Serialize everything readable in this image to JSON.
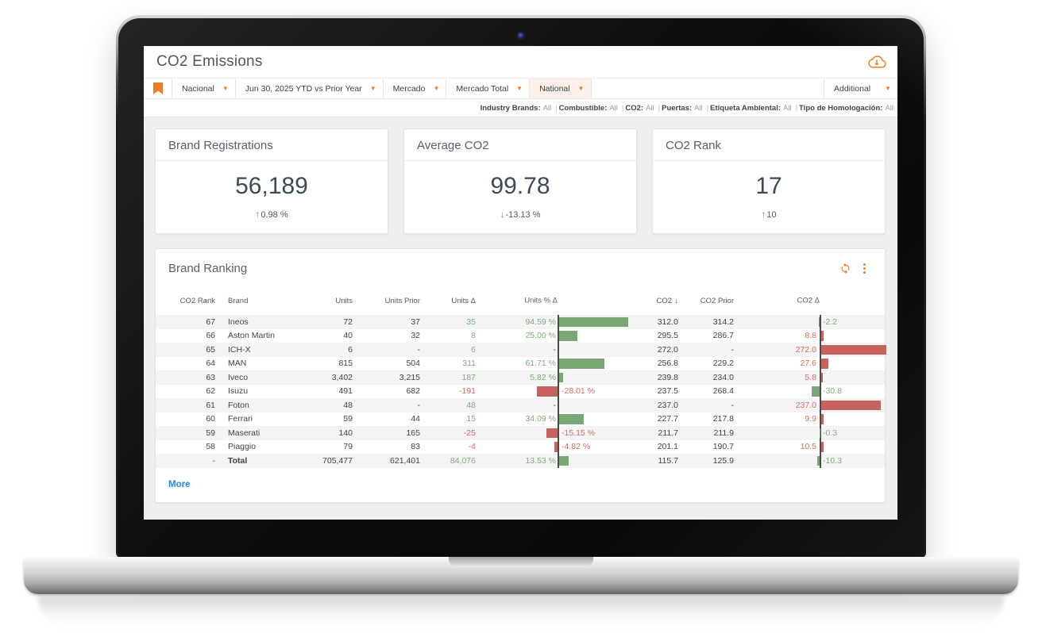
{
  "app": {
    "title": "CO2 Emissions",
    "accent_color": "#ef7d27"
  },
  "filter_bar": {
    "items": [
      {
        "label": "Nacional",
        "highlighted": false
      },
      {
        "label": "Jun 30, 2025 YTD vs Prior Year",
        "highlighted": false
      },
      {
        "label": "Mercado",
        "highlighted": false
      },
      {
        "label": "Mercado Total",
        "highlighted": false
      },
      {
        "label": "National",
        "highlighted": true
      }
    ],
    "additional_label": "Additional"
  },
  "applied_filters": [
    {
      "label": "Industry Brands:",
      "value": "All"
    },
    {
      "label": "Combustible:",
      "value": "All"
    },
    {
      "label": "CO2:",
      "value": "All"
    },
    {
      "label": "Puertas:",
      "value": "All"
    },
    {
      "label": "Etiqueta Ambiental:",
      "value": "All"
    },
    {
      "label": "Tipo de Homologación:",
      "value": "All"
    }
  ],
  "kpi_cards": [
    {
      "title": "Brand Registrations",
      "value": "56,189",
      "delta": "0.98 %",
      "direction": "up",
      "delta_color": "green"
    },
    {
      "title": "Average CO2",
      "value": "99.78",
      "delta": "-13.13 %",
      "direction": "down",
      "delta_color": "green"
    },
    {
      "title": "CO2 Rank",
      "value": "17",
      "delta": "10",
      "direction": "up",
      "delta_color": "red"
    }
  ],
  "ranking": {
    "title": "Brand Ranking",
    "more_label": "More",
    "columns": [
      "CO2 Rank",
      "Brand",
      "Units",
      "Units Prior",
      "Units Δ",
      "Units % Δ",
      "CO2",
      "CO2 Prior",
      "CO2 Δ"
    ],
    "sorted_column_index": 6,
    "rows": [
      {
        "rank": "67",
        "brand": "Ineos",
        "units": "72",
        "units_prior": "37",
        "units_delta": "35",
        "units_pct": "94.59 %",
        "units_pct_val": 94.59,
        "co2": "312.0",
        "co2_prior": "314.2",
        "co2_delta": "-2.2",
        "co2_delta_val": -2.2
      },
      {
        "rank": "66",
        "brand": "Aston Martin",
        "units": "40",
        "units_prior": "32",
        "units_delta": "8",
        "units_pct": "25.00 %",
        "units_pct_val": 25.0,
        "co2": "295.5",
        "co2_prior": "286.7",
        "co2_delta": "8.8",
        "co2_delta_val": 8.8
      },
      {
        "rank": "65",
        "brand": "ICH-X",
        "units": "6",
        "units_prior": "-",
        "units_delta": "6",
        "units_pct": "-",
        "units_pct_val": null,
        "co2": "272.0",
        "co2_prior": "-",
        "co2_delta": "272.0",
        "co2_delta_val": 272.0
      },
      {
        "rank": "64",
        "brand": "MAN",
        "units": "815",
        "units_prior": "504",
        "units_delta": "311",
        "units_pct": "61.71 %",
        "units_pct_val": 61.71,
        "co2": "256.8",
        "co2_prior": "229.2",
        "co2_delta": "27.6",
        "co2_delta_val": 27.6
      },
      {
        "rank": "63",
        "brand": "Iveco",
        "units": "3,402",
        "units_prior": "3,215",
        "units_delta": "187",
        "units_pct": "5.82 %",
        "units_pct_val": 5.82,
        "co2": "239.8",
        "co2_prior": "234.0",
        "co2_delta": "5.8",
        "co2_delta_val": 5.8
      },
      {
        "rank": "62",
        "brand": "Isuzu",
        "units": "491",
        "units_prior": "682",
        "units_delta": "-191",
        "units_pct": "-28.01 %",
        "units_pct_val": -28.01,
        "co2": "237.5",
        "co2_prior": "268.4",
        "co2_delta": "-30.8",
        "co2_delta_val": -30.8
      },
      {
        "rank": "61",
        "brand": "Foton",
        "units": "48",
        "units_prior": "-",
        "units_delta": "48",
        "units_pct": "-",
        "units_pct_val": null,
        "co2": "237.0",
        "co2_prior": "-",
        "co2_delta": "237.0",
        "co2_delta_val": 237.0
      },
      {
        "rank": "60",
        "brand": "Ferrari",
        "units": "59",
        "units_prior": "44",
        "units_delta": "15",
        "units_pct": "34.09 %",
        "units_pct_val": 34.09,
        "co2": "227.7",
        "co2_prior": "217.8",
        "co2_delta": "9.9",
        "co2_delta_val": 9.9
      },
      {
        "rank": "59",
        "brand": "Maserati",
        "units": "140",
        "units_prior": "165",
        "units_delta": "-25",
        "units_pct": "-15.15 %",
        "units_pct_val": -15.15,
        "co2": "211.7",
        "co2_prior": "211.9",
        "co2_delta": "-0.3",
        "co2_delta_val": -0.3
      },
      {
        "rank": "58",
        "brand": "Piaggio",
        "units": "79",
        "units_prior": "83",
        "units_delta": "-4",
        "units_pct": "-4.82 %",
        "units_pct_val": -4.82,
        "co2": "201.1",
        "co2_prior": "190.7",
        "co2_delta": "10.5",
        "co2_delta_val": 10.5
      },
      {
        "rank": "-",
        "brand": "Total",
        "total": true,
        "units": "705,477",
        "units_prior": "621,401",
        "units_delta": "84,076",
        "units_pct": "13.53 %",
        "units_pct_val": 13.53,
        "co2": "115.7",
        "co2_prior": "125.9",
        "co2_delta": "-10.3",
        "co2_delta_val": -10.3
      }
    ]
  },
  "colors": {
    "positive_bar": "#7aa874",
    "negative_bar": "#c8625c",
    "positive_text": "#7fab79",
    "negative_text": "#cf6b64",
    "accent": "#ef7d27",
    "link": "#2188e8"
  }
}
